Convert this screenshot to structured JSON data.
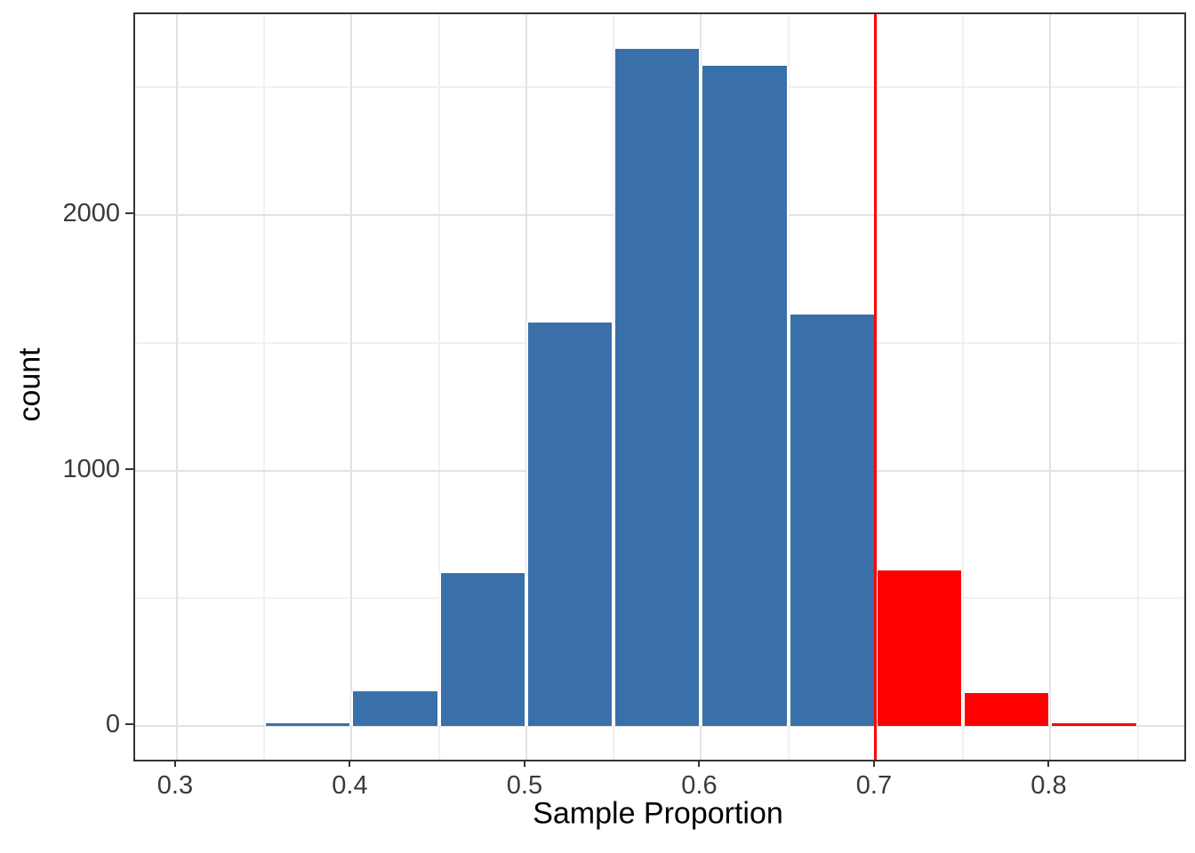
{
  "chart_data": {
    "type": "bar",
    "subtype": "histogram",
    "title": "",
    "xlabel": "Sample Proportion",
    "ylabel": "count",
    "bin_width": 0.05,
    "bins": [
      {
        "x0": 0.35,
        "x1": 0.4,
        "count": 10,
        "group": "below"
      },
      {
        "x0": 0.4,
        "x1": 0.45,
        "count": 135,
        "group": "below"
      },
      {
        "x0": 0.45,
        "x1": 0.5,
        "count": 600,
        "group": "below"
      },
      {
        "x0": 0.5,
        "x1": 0.55,
        "count": 1580,
        "group": "below"
      },
      {
        "x0": 0.55,
        "x1": 0.6,
        "count": 2650,
        "group": "below"
      },
      {
        "x0": 0.6,
        "x1": 0.65,
        "count": 2585,
        "group": "below"
      },
      {
        "x0": 0.65,
        "x1": 0.7,
        "count": 1610,
        "group": "below"
      },
      {
        "x0": 0.7,
        "x1": 0.75,
        "count": 610,
        "group": "above"
      },
      {
        "x0": 0.75,
        "x1": 0.8,
        "count": 130,
        "group": "above"
      },
      {
        "x0": 0.8,
        "x1": 0.85,
        "count": 10,
        "group": "above"
      }
    ],
    "series_colors": {
      "below": "#3A70A9",
      "above": "#FF0000"
    },
    "vline": {
      "x": 0.7,
      "color": "#FF0000"
    },
    "x_ticks": [
      0.3,
      0.4,
      0.5,
      0.6,
      0.7,
      0.8
    ],
    "x_tick_labels": [
      "0.3",
      "0.4",
      "0.5",
      "0.6",
      "0.7",
      "0.8"
    ],
    "x_minor_ticks": [
      0.35,
      0.45,
      0.55,
      0.65,
      0.75,
      0.85
    ],
    "y_ticks": [
      0,
      1000,
      2000
    ],
    "y_tick_labels": [
      "0",
      "1000",
      "2000"
    ],
    "y_minor_ticks": [
      500,
      1500,
      2500
    ],
    "x_domain": [
      0.2761,
      0.8766
    ],
    "y_domain": [
      -132,
      2786
    ],
    "grid": true,
    "legend_position": "none",
    "theme": {
      "grid_major_color": "#E2E2E2",
      "grid_minor_color": "#F1F1F1",
      "panel_border_color": "#333333",
      "tick_label_color": "#3A3A3A",
      "axis_title_color": "#000000",
      "background": "#FFFFFF"
    }
  }
}
